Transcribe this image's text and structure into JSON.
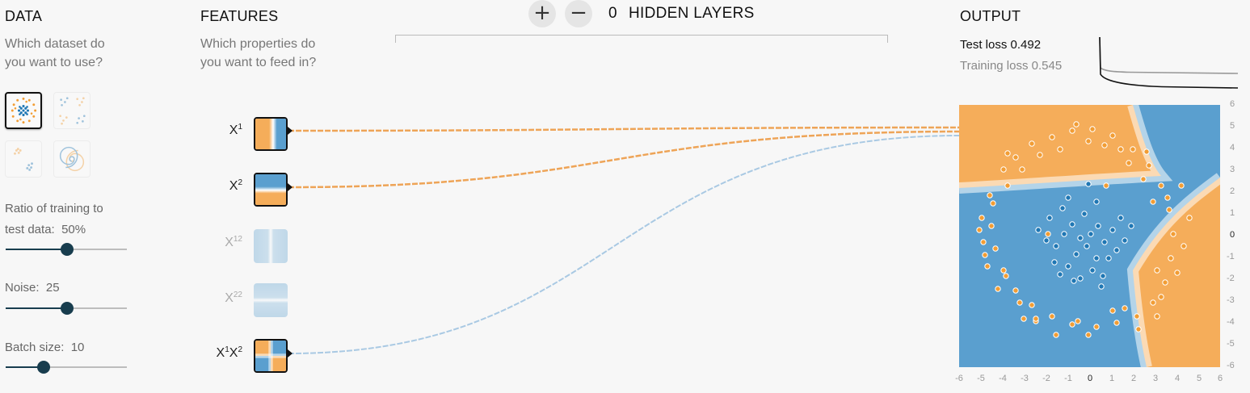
{
  "data_panel": {
    "heading": "DATA",
    "question_line1": "Which dataset do",
    "question_line2": "you want to use?",
    "datasets": [
      "circle-dataset",
      "xor-dataset",
      "gaussian-dataset",
      "spiral-dataset"
    ],
    "selected_dataset": "circle-dataset",
    "ratio_label_line1": "Ratio of training to",
    "ratio_label_line2": "test data:",
    "ratio_value": "50%",
    "ratio_fraction": 0.5,
    "noise_label": "Noise:",
    "noise_value": "25",
    "noise_fraction": 0.5,
    "batch_label": "Batch size:",
    "batch_value": "10",
    "batch_fraction": 0.32
  },
  "features_panel": {
    "heading": "FEATURES",
    "question_line1": "Which properties do",
    "question_line2": "you want to feed in?",
    "features": [
      {
        "label": "X",
        "sup": "1",
        "active": true
      },
      {
        "label": "X",
        "sup": "2",
        "active": true
      },
      {
        "label": "X",
        "sup": "12",
        "active": false
      },
      {
        "label": "X",
        "sup": "22",
        "active": false
      },
      {
        "label": "X",
        "sup": "1",
        "label2": "X",
        "sup2": "2",
        "active": true
      }
    ]
  },
  "network": {
    "add_layer": "+",
    "remove_layer": "−",
    "hidden_layer_count": "0",
    "hidden_layers_label": "HIDDEN LAYERS"
  },
  "output_panel": {
    "heading": "OUTPUT",
    "test_loss_label": "Test loss",
    "test_loss_value": "0.492",
    "training_loss_label": "Training loss",
    "training_loss_value": "0.545",
    "x_ticks": [
      "-6",
      "-5",
      "-4",
      "-3",
      "-2",
      "-1",
      "0",
      "1",
      "2",
      "3",
      "4",
      "5",
      "6"
    ],
    "y_ticks": [
      "6",
      "5",
      "4",
      "3",
      "2",
      "1",
      "0",
      "-1",
      "-2",
      "-3",
      "-4",
      "-5",
      "-6"
    ],
    "colors": {
      "positive": "#f5ad5a",
      "negative": "#5a9fcf",
      "positive_point": "#f29d34",
      "negative_point": "#1f77b4"
    }
  }
}
